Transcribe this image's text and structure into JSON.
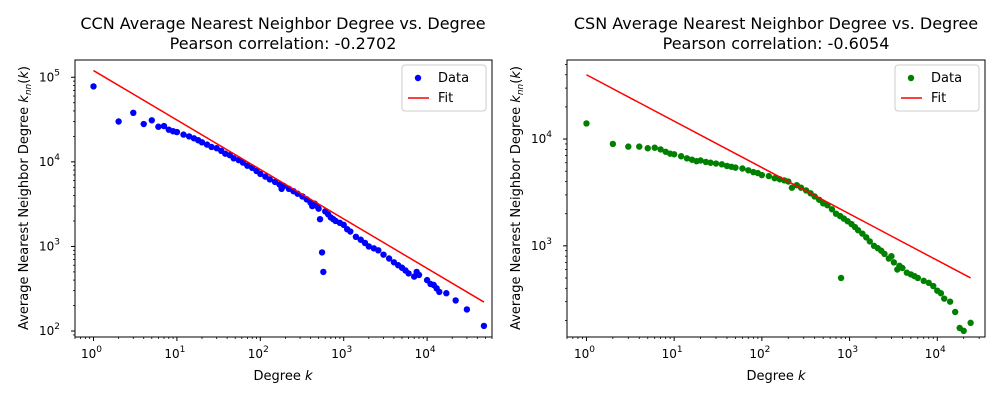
{
  "chart_data": [
    {
      "type": "scatter",
      "title": "CCN Average Nearest Neighbor Degree vs. Degree",
      "subtitle": "Pearson correlation: -0.2702",
      "xlabel": "Degree k",
      "ylabel": "Average Nearest Neighbor Degree k_nn(k)",
      "xscale": "log",
      "yscale": "log",
      "xlim": [
        0.6,
        60000
      ],
      "ylim": [
        85,
        160000
      ],
      "x_ticks": [
        1,
        10,
        100,
        1000,
        10000
      ],
      "x_tick_labels": [
        "10^0",
        "10^1",
        "10^2",
        "10^3",
        "10^4"
      ],
      "y_ticks": [
        100,
        1000,
        10000,
        100000
      ],
      "y_tick_labels": [
        "10^2",
        "10^3",
        "10^4",
        "10^5"
      ],
      "legend": {
        "position": "upper right",
        "items": [
          {
            "label": "Data",
            "kind": "marker"
          },
          {
            "label": "Fit",
            "kind": "line"
          }
        ]
      },
      "series": [
        {
          "name": "Data",
          "color": "#0000ff",
          "x": [
            1,
            2,
            3,
            4,
            5,
            6,
            7,
            8,
            9,
            10,
            12,
            14,
            16,
            18,
            20,
            23,
            26,
            30,
            34,
            38,
            43,
            48,
            55,
            62,
            70,
            80,
            90,
            100,
            115,
            130,
            150,
            170,
            180,
            190,
            220,
            250,
            280,
            320,
            360,
            400,
            420,
            450,
            480,
            500,
            520,
            550,
            570,
            600,
            650,
            700,
            750,
            800,
            900,
            1000,
            1100,
            1200,
            1400,
            1600,
            1800,
            2000,
            2300,
            2600,
            3000,
            3500,
            4000,
            4500,
            5000,
            5500,
            6000,
            7000,
            7500,
            8000,
            10000,
            11000,
            12000,
            13000,
            14000,
            17000,
            22000,
            30000,
            48000
          ],
          "y": [
            78000,
            30000,
            38000,
            28000,
            31000,
            26000,
            26500,
            24000,
            23000,
            22500,
            21000,
            20000,
            19000,
            18000,
            17000,
            16000,
            15000,
            14500,
            13500,
            12500,
            12000,
            11000,
            10500,
            9800,
            9000,
            8500,
            7800,
            7200,
            6700,
            6200,
            5800,
            5400,
            4800,
            5200,
            4800,
            4500,
            4200,
            3900,
            3600,
            3300,
            3000,
            3200,
            3000,
            2800,
            2100,
            850,
            500,
            2600,
            2400,
            2200,
            2100,
            2000,
            1900,
            1800,
            1600,
            1500,
            1300,
            1200,
            1100,
            1000,
            950,
            900,
            800,
            720,
            650,
            600,
            560,
            520,
            480,
            440,
            500,
            460,
            400,
            360,
            350,
            320,
            290,
            280,
            230,
            180,
            115
          ]
        },
        {
          "name": "Fit",
          "color": "#ff0000",
          "x": [
            1,
            48000
          ],
          "y": [
            120000,
            220
          ]
        }
      ]
    },
    {
      "type": "scatter",
      "title": "CSN Average Nearest Neighbor Degree vs. Degree",
      "subtitle": "Pearson correlation: -0.6054",
      "xlabel": "Degree k",
      "ylabel": "Average Nearest Neighbor Degree k_nn(k)",
      "xscale": "log",
      "yscale": "log",
      "xlim": [
        0.6,
        35000
      ],
      "ylim": [
        140,
        55000
      ],
      "x_ticks": [
        1,
        10,
        100,
        1000,
        10000
      ],
      "x_tick_labels": [
        "10^0",
        "10^1",
        "10^2",
        "10^3",
        "10^4"
      ],
      "y_ticks": [
        1000,
        10000
      ],
      "y_tick_labels": [
        "10^3",
        "10^4"
      ],
      "legend": {
        "position": "upper right",
        "items": [
          {
            "label": "Data",
            "kind": "marker"
          },
          {
            "label": "Fit",
            "kind": "line"
          }
        ]
      },
      "series": [
        {
          "name": "Data",
          "color": "#008000",
          "x": [
            1,
            2,
            3,
            4,
            5,
            6,
            7,
            8,
            9,
            10,
            12,
            14,
            16,
            18,
            20,
            23,
            26,
            30,
            35,
            40,
            45,
            50,
            60,
            70,
            80,
            90,
            100,
            120,
            140,
            160,
            180,
            200,
            220,
            250,
            280,
            320,
            360,
            400,
            450,
            500,
            560,
            630,
            700,
            780,
            800,
            860,
            950,
            1050,
            1150,
            1250,
            1400,
            1550,
            1700,
            1900,
            2100,
            2300,
            2500,
            2800,
            3000,
            3200,
            3500,
            3700,
            4000,
            4500,
            5000,
            5500,
            6000,
            7000,
            8000,
            9000,
            10000,
            11000,
            12000,
            14000,
            16000,
            18000,
            20000,
            24000
          ],
          "y": [
            14000,
            9000,
            8500,
            8500,
            8200,
            8300,
            8000,
            7600,
            7300,
            7200,
            6900,
            6600,
            6400,
            6200,
            6300,
            6100,
            6000,
            5900,
            5800,
            5600,
            5500,
            5400,
            5300,
            5100,
            4900,
            4800,
            4600,
            4500,
            4300,
            4200,
            4100,
            4000,
            3500,
            3700,
            3500,
            3300,
            3100,
            2900,
            2700,
            2500,
            2400,
            2200,
            2000,
            1900,
            500,
            1800,
            1700,
            1600,
            1500,
            1400,
            1300,
            1200,
            1100,
            1000,
            950,
            900,
            840,
            760,
            800,
            700,
            600,
            650,
            620,
            560,
            540,
            520,
            500,
            470,
            450,
            420,
            380,
            360,
            320,
            300,
            240,
            170,
            160,
            190
          ]
        },
        {
          "name": "Fit",
          "color": "#ff0000",
          "x": [
            1,
            24000
          ],
          "y": [
            40000,
            500
          ]
        }
      ]
    }
  ]
}
